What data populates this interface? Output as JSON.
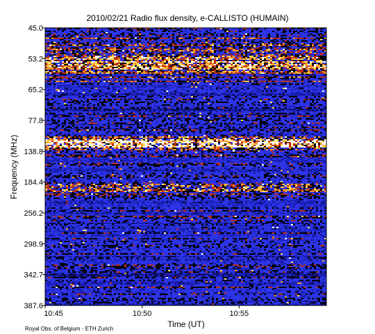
{
  "chart_data": {
    "type": "heatmap",
    "title": "2010/02/21  Radio flux density, e-CALLISTO (HUMAIN)",
    "xlabel": "Time (UT)",
    "ylabel": "Frequency (MHz)",
    "x_ticks": [
      "10:45",
      "10:50",
      "10:55"
    ],
    "x_range_minutes": [
      0,
      14.5
    ],
    "x_tick_minutes": [
      0,
      5,
      10
    ],
    "y_ticks": [
      "45.0",
      "53.2",
      "65.2",
      "77.8",
      "138.8",
      "184.4",
      "256.2",
      "298.9",
      "342.7",
      "387.6"
    ],
    "y_axis_inverted": true,
    "colormap": [
      "#0a0a4a",
      "#1a1fb4",
      "#2d34e6",
      "#000000",
      "#b5301a",
      "#f59a2a",
      "#ffe060",
      "#ffffff"
    ],
    "features": [
      {
        "freq_band_mhz": [
          "48.0",
          "70.0"
        ],
        "type": "bursty emission"
      },
      {
        "freq_band_mhz": [
          "125.0",
          "150.0"
        ],
        "type": "strong interference band"
      },
      {
        "freq_band_mhz": [
          "180.0",
          "195.0"
        ],
        "type": "interference band"
      }
    ]
  },
  "footer": "Royal Obs. of Belgium - ETH Zurich"
}
